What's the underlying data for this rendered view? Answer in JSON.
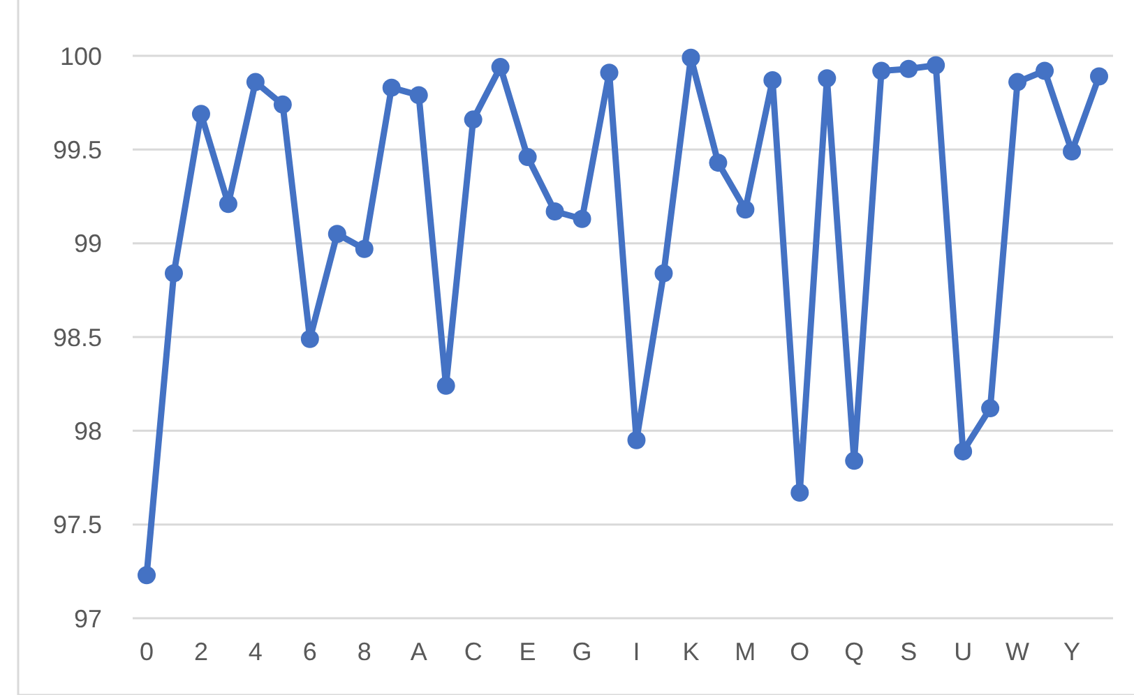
{
  "chart_data": {
    "type": "line",
    "categories": [
      "0",
      null,
      "2",
      null,
      "4",
      null,
      "6",
      null,
      "8",
      null,
      "A",
      null,
      "C",
      null,
      "E",
      null,
      "G",
      null,
      "I",
      null,
      "K",
      null,
      "M",
      null,
      "O",
      null,
      "Q",
      null,
      "S",
      null,
      "U",
      null,
      "W",
      null,
      "Y",
      null
    ],
    "series": [
      {
        "color": "#4472c4",
        "values": [
          97.23,
          98.84,
          99.69,
          99.21,
          99.86,
          99.74,
          98.49,
          99.05,
          98.97,
          99.83,
          99.79,
          98.24,
          99.66,
          99.94,
          99.46,
          99.17,
          99.13,
          99.91,
          97.95,
          98.84,
          99.99,
          99.43,
          99.18,
          99.87,
          97.67,
          99.88,
          97.84,
          99.92,
          99.93,
          99.95,
          97.89,
          98.12,
          99.86,
          99.92,
          99.49,
          99.89
        ]
      }
    ],
    "ylim": [
      97,
      100
    ],
    "yticks": [
      97,
      97.5,
      98,
      98.5,
      99,
      99.5,
      100
    ],
    "grid": "y",
    "marker": "circle",
    "line_style": "solid"
  }
}
